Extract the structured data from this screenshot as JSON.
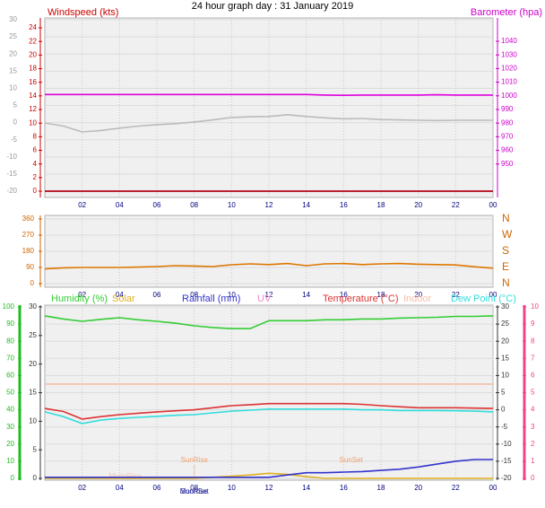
{
  "chart_data": [
    {
      "type": "line",
      "title": "24 hour graph day : 31 January 2019",
      "xlim": [
        0,
        24
      ],
      "xticks": [
        {
          "value": 2,
          "label": "02"
        },
        {
          "value": 4,
          "label": "04"
        },
        {
          "value": 6,
          "label": "06"
        },
        {
          "value": 8,
          "label": "08"
        },
        {
          "value": 10,
          "label": "10"
        },
        12,
        14,
        16,
        18,
        20,
        22,
        {
          "value": 24,
          "label": "00"
        }
      ],
      "axes": [
        {
          "color": "#999999",
          "lim": [
            -21.8,
            30.5
          ],
          "ticks": [
            -20,
            -15,
            -10,
            -5,
            0,
            5,
            10,
            15,
            20,
            25,
            30
          ]
        },
        {
          "label": "Windspeed (kts)",
          "color": "#cc0000",
          "lim": [
            -0.92,
            25.45
          ],
          "ticks": [
            0,
            2,
            4,
            6,
            8,
            10,
            12,
            14,
            16,
            18,
            20,
            22,
            24
          ]
        },
        {
          "label": "Barometer (hpa)",
          "color": "#cc00cc",
          "lim": [
            925.5,
            1057.1
          ],
          "ticks": [
            950,
            960,
            970,
            980,
            990,
            1000,
            1010,
            1020,
            1030,
            1040
          ]
        }
      ],
      "x": [
        0,
        1,
        2,
        3,
        4,
        5,
        6,
        7,
        8,
        9,
        10,
        11,
        12,
        13,
        14,
        15,
        16,
        17,
        18,
        19,
        20,
        21,
        22,
        23,
        24
      ],
      "series": [
        {
          "color": "#dd00dd",
          "axis": 2,
          "values": [
            1001,
            1001,
            1001,
            1001,
            1001,
            1001,
            1001,
            1001,
            1001,
            1001,
            1001,
            1001,
            1001,
            1001,
            1001,
            1000.6,
            1000.4,
            1000.6,
            1000.6,
            1000.6,
            1000.6,
            1000.8,
            1000.6,
            1000.6,
            1000.6
          ]
        },
        {
          "color": "#bbbbbb",
          "axis": 0,
          "values": [
            -0.1,
            -1,
            -2.7,
            -2.3,
            -1.6,
            -1,
            -0.6,
            -0.3,
            0.2,
            0.8,
            1.5,
            1.7,
            1.8,
            2.3,
            1.8,
            1.4,
            1.1,
            1.2,
            0.9,
            0.8,
            0.7,
            0.6,
            0.7,
            0.7,
            0.7
          ]
        },
        {
          "color": "#2020a0",
          "axis": 1,
          "values": [
            0,
            0,
            0,
            0,
            0,
            0,
            0,
            0,
            0,
            0,
            0,
            0,
            0,
            0,
            0,
            0,
            0,
            0,
            0,
            0,
            0,
            0,
            0,
            0,
            0
          ]
        },
        {
          "color": "#cc0000",
          "axis": 1,
          "values": [
            0,
            0,
            0,
            0,
            0,
            0,
            0,
            0,
            0,
            0,
            0,
            0,
            0,
            0,
            0,
            0,
            0,
            0,
            0,
            0,
            0,
            0,
            0,
            0,
            0
          ]
        }
      ]
    },
    {
      "type": "line",
      "xlim": [
        0,
        24
      ],
      "xticks": [
        {
          "value": 2,
          "label": "02"
        },
        {
          "value": 4,
          "label": "04"
        },
        {
          "value": 6,
          "label": "06"
        },
        {
          "value": 8,
          "label": "08"
        },
        {
          "value": 10,
          "label": "10"
        },
        12,
        14,
        16,
        18,
        20,
        22,
        {
          "value": 24,
          "label": "00"
        }
      ],
      "axes": [
        {
          "color": "#cc6600",
          "lim": [
            -20,
            380
          ],
          "ticks": [
            0,
            90,
            180,
            270,
            360
          ]
        },
        {
          "color": "#cc6600",
          "lim": [
            -20,
            380
          ],
          "ticks": [
            {
              "value": 0,
              "label": "N"
            },
            {
              "value": 90,
              "label": "E"
            },
            {
              "value": 180,
              "label": "S"
            },
            {
              "value": 270,
              "label": "W"
            },
            {
              "value": 360,
              "label": "N"
            }
          ]
        }
      ],
      "x": [
        0,
        1,
        2,
        3,
        4,
        5,
        6,
        7,
        8,
        9,
        10,
        11,
        12,
        13,
        14,
        15,
        16,
        17,
        18,
        19,
        20,
        21,
        22,
        23,
        24
      ],
      "series": [
        {
          "color": "#dd7700",
          "axis": 0,
          "values": [
            82,
            88,
            90,
            90,
            90,
            92,
            95,
            100,
            98,
            95,
            105,
            110,
            106,
            112,
            100,
            110,
            112,
            106,
            110,
            112,
            108,
            106,
            104,
            94,
            86
          ]
        }
      ]
    },
    {
      "type": "line",
      "xlim": [
        0,
        24
      ],
      "xticks": [
        {
          "value": 2,
          "label": "02"
        },
        {
          "value": 4,
          "label": "04"
        },
        {
          "value": 6,
          "label": "06"
        },
        {
          "value": 8,
          "label": "08"
        },
        {
          "value": 10,
          "label": "10"
        },
        12,
        14,
        16,
        18,
        20,
        22,
        {
          "value": 24,
          "label": "00"
        }
      ],
      "axes": [
        {
          "color": "#22bb22",
          "lim": [
            -1.05,
            101.05
          ],
          "ticks": [
            0,
            10,
            20,
            30,
            40,
            50,
            60,
            70,
            80,
            90,
            100
          ]
        },
        {
          "color": "#333333",
          "lim": [
            -0.31,
            30.31
          ],
          "ticks": [
            0,
            5,
            10,
            15,
            20,
            25,
            30
          ]
        },
        {
          "color": "#333333",
          "lim": [
            -20.52,
            30.52
          ],
          "ticks": [
            -20,
            -15,
            -10,
            -5,
            0,
            5,
            10,
            15,
            20,
            25,
            30
          ]
        },
        {
          "color": "#ee4488",
          "lim": [
            -0.1,
            10.1
          ],
          "ticks": [
            0,
            1,
            2,
            3,
            4,
            5,
            6,
            7,
            8,
            9,
            10
          ]
        }
      ],
      "x": [
        0,
        1,
        2,
        3,
        4,
        5,
        6,
        7,
        8,
        9,
        10,
        11,
        12,
        13,
        14,
        15,
        16,
        17,
        18,
        19,
        20,
        21,
        22,
        23,
        24
      ],
      "series": [
        {
          "name": "Humidity (%)",
          "color": "#33cc33",
          "axis": 0,
          "values": [
            94.8,
            93,
            91.6,
            92.8,
            93.7,
            92.5,
            91.6,
            90.5,
            89,
            88,
            87.4,
            87.4,
            92,
            92,
            92,
            92.5,
            92.5,
            93,
            93,
            93.5,
            93.7,
            94,
            94.5,
            94.5,
            94.8
          ]
        },
        {
          "name": "Solar",
          "color": "#e0b020",
          "axis": 1,
          "values": [
            0,
            0,
            0,
            0,
            0,
            0,
            0,
            0,
            0,
            0.2,
            0.4,
            0.6,
            0.9,
            0.7,
            0.3,
            0,
            0,
            0,
            0,
            0,
            0,
            0,
            0,
            0,
            0
          ]
        },
        {
          "name": "Rainfall (mm)",
          "color": "#3333cc",
          "axis": 1,
          "values": [
            0.2,
            0.2,
            0.2,
            0.2,
            0.2,
            0.2,
            0.2,
            0.2,
            0.2,
            0.2,
            0.2,
            0.2,
            0.2,
            0.6,
            1.0,
            1.0,
            1.1,
            1.2,
            1.4,
            1.6,
            2.0,
            2.5,
            3.0,
            3.3,
            3.3
          ]
        },
        {
          "name": "UV",
          "color": "#ee88cc",
          "axis": 3,
          "values": [
            null,
            null,
            null,
            null,
            null,
            null,
            null,
            null,
            null,
            null,
            null,
            null,
            null,
            null,
            null,
            null,
            null,
            null,
            null,
            null,
            null,
            null,
            null,
            null,
            null
          ]
        },
        {
          "name": "Temperature (°C)",
          "color": "#dd3333",
          "axis": 2,
          "values": [
            0.4,
            -0.5,
            -2.7,
            -2,
            -1.4,
            -1,
            -0.6,
            -0.3,
            0,
            0.6,
            1.2,
            1.5,
            1.8,
            1.8,
            1.8,
            1.8,
            1.8,
            1.6,
            1.2,
            0.9,
            0.6,
            0.6,
            0.6,
            0.5,
            0.4
          ]
        },
        {
          "name": "Indoor",
          "color": "#f5c0a8",
          "axis": 2,
          "values": [
            7.5,
            7.5,
            7.5,
            7.5,
            7.5,
            7.5,
            7.5,
            7.5,
            7.5,
            7.5,
            7.5,
            7.5,
            7.5,
            7.5,
            7.5,
            7.5,
            7.5,
            7.5,
            7.5,
            7.5,
            7.5,
            7.5,
            7.5,
            7.5,
            7.5
          ]
        },
        {
          "name": "Dew Point (°C)",
          "color": "#33dddd",
          "axis": 2,
          "values": [
            -0.6,
            -2,
            -4,
            -3,
            -2.5,
            -2.2,
            -1.9,
            -1.6,
            -1.4,
            -0.9,
            -0.4,
            -0.1,
            0.2,
            0.2,
            0.2,
            0.2,
            0.2,
            0,
            0,
            -0.2,
            -0.2,
            -0.2,
            -0.3,
            -0.4,
            -0.6
          ]
        }
      ],
      "annotations": [
        {
          "text": "MoonRise",
          "x": 4.3
        },
        {
          "text": "SunRise",
          "x": 8
        },
        {
          "text": "SunSet",
          "x": 16.4
        }
      ],
      "axis_notes": [
        {
          "text": "SunRise",
          "x": 8
        },
        {
          "text": "MoonSet",
          "x": 8
        }
      ]
    }
  ]
}
